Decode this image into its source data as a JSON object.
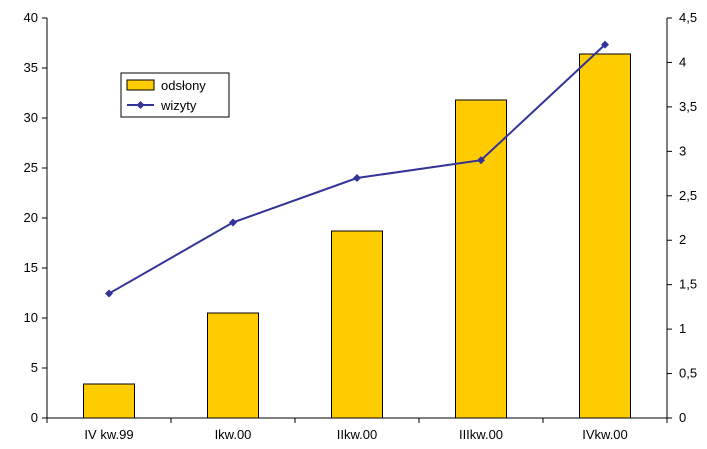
{
  "chart_data": {
    "type": "bar",
    "categories": [
      "IV kw.99",
      "Ikw.00",
      "IIkw.00",
      "IIIkw.00",
      "IVkw.00"
    ],
    "series": [
      {
        "name": "odsłony",
        "type": "bar",
        "axis": "left",
        "color": "#FFCC00",
        "values": [
          3.4,
          10.5,
          18.7,
          31.8,
          36.4
        ]
      },
      {
        "name": "wizyty",
        "type": "line",
        "axis": "right",
        "color": "#333399",
        "values": [
          1.4,
          2.2,
          2.7,
          2.9,
          4.2
        ]
      }
    ],
    "y_left": {
      "range": [
        0,
        40
      ],
      "ticks": [
        0,
        5,
        10,
        15,
        20,
        25,
        30,
        35,
        40
      ],
      "tick_labels": [
        "0",
        "5",
        "10",
        "15",
        "20",
        "25",
        "30",
        "35",
        "40"
      ]
    },
    "y_right": {
      "range": [
        0,
        4.5
      ],
      "ticks": [
        0,
        0.5,
        1,
        1.5,
        2,
        2.5,
        3,
        3.5,
        4,
        4.5
      ],
      "tick_labels": [
        "0",
        "0,5",
        "1",
        "1,5",
        "2",
        "2,5",
        "3",
        "3,5",
        "4",
        "4,5"
      ]
    },
    "grid": false,
    "legend": {
      "position": "top-left",
      "entries": [
        "odsłony",
        "wizyty"
      ]
    }
  }
}
